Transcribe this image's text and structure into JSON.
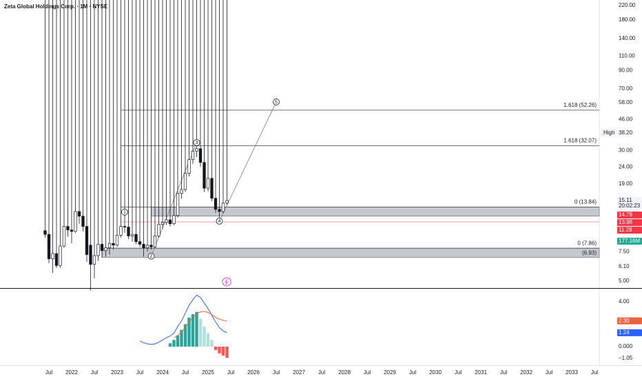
{
  "chart_data": [
    {
      "type": "candlestick",
      "log": true,
      "title": "Zeta Global Holdings Corp. · 1M · NYSE",
      "x": [
        "2021-06",
        "2021-07",
        "2021-08",
        "2021-09",
        "2021-10",
        "2021-11",
        "2021-12",
        "2022-01",
        "2022-02",
        "2022-03",
        "2022-04",
        "2022-05",
        "2022-06",
        "2022-07",
        "2022-08",
        "2022-09",
        "2022-10",
        "2022-11",
        "2022-12",
        "2023-01",
        "2023-02",
        "2023-03",
        "2023-04",
        "2023-05",
        "2023-06",
        "2023-07",
        "2023-08",
        "2023-09",
        "2023-10",
        "2023-11",
        "2023-12",
        "2024-01",
        "2024-02",
        "2024-03",
        "2024-04",
        "2024-05",
        "2024-06",
        "2024-07",
        "2024-08",
        "2024-09",
        "2024-10",
        "2024-11",
        "2024-12",
        "2025-01",
        "2025-02",
        "2025-03",
        "2025-04",
        "2025-05",
        "2025-06"
      ],
      "open": [
        10,
        9.5,
        6.8,
        7.3,
        6.2,
        8.1,
        10.6,
        10.1,
        9.9,
        13.0,
        12.2,
        10.6,
        8.2,
        6.3,
        7.1,
        8.3,
        7.6,
        7.9,
        8.4,
        8.2,
        9.4,
        10.6,
        10.5,
        9.3,
        9.5,
        8.6,
        8.3,
        7.9,
        8.2,
        8.0,
        9.3,
        10.9,
        11.2,
        11.6,
        11.0,
        12.3,
        16.7,
        17.6,
        22.0,
        26.5,
        29.8,
        30.8,
        25.5,
        17.9,
        20.5,
        15.6,
        13.4,
        13.0,
        14.6
      ],
      "high": {
        "label": "High",
        "value": 38.2,
        "value_label": "38.20"
      },
      "low": [
        9.1,
        6.4,
        5.6,
        6.0,
        6.0,
        7.9,
        9.2,
        8.4,
        9.7,
        11.0,
        9.9,
        6.5,
        4.4,
        5.2,
        6.6,
        6.9,
        7.0,
        7.2,
        7.7,
        8.0,
        9.1,
        9.7,
        8.9,
        8.6,
        8.3,
        8.0,
        7.0,
        7.5,
        7.7,
        7.9,
        9.1,
        10.2,
        10.8,
        10.6,
        10.8,
        12.0,
        15.5,
        17.0,
        21.0,
        25.0,
        27.5,
        24.0,
        17.0,
        17.2,
        15.0,
        12.8,
        11.8,
        12.7,
        14.2
      ],
      "close": [
        9.5,
        6.8,
        7.3,
        6.2,
        8.1,
        10.6,
        10.1,
        9.9,
        13.0,
        12.2,
        10.6,
        7.2,
        6.3,
        7.1,
        8.3,
        7.6,
        7.9,
        8.4,
        8.2,
        9.4,
        10.6,
        10.5,
        9.3,
        9.5,
        8.6,
        8.3,
        7.9,
        8.2,
        8.0,
        9.3,
        10.9,
        11.2,
        11.6,
        11.0,
        12.3,
        16.7,
        17.6,
        22.0,
        26.5,
        29.8,
        30.8,
        25.5,
        17.9,
        20.5,
        15.6,
        13.4,
        13.0,
        14.6,
        15.11
      ],
      "colors": {
        "up": "#ffffff",
        "down": "#131722"
      },
      "ylim": [
        4.55,
        237
      ],
      "yticks": [
        {
          "value": 220,
          "label": "220.00"
        },
        {
          "value": 180,
          "label": "180.00"
        },
        {
          "value": 140,
          "label": "140.00"
        },
        {
          "value": 110,
          "label": "110.00"
        },
        {
          "value": 90,
          "label": "90.00"
        },
        {
          "value": 70,
          "label": "70.00"
        },
        {
          "value": 58,
          "label": "58.00"
        },
        {
          "value": 46,
          "label": "46.00"
        },
        {
          "value": 30,
          "label": "30.00"
        },
        {
          "value": 24,
          "label": "24.00"
        },
        {
          "value": 19,
          "label": "19.00"
        },
        {
          "value": 7.5,
          "label": "7.50"
        },
        {
          "value": 6.1,
          "label": "6.10"
        },
        {
          "value": 5,
          "label": "5.00"
        }
      ],
      "xticks": [
        {
          "value": "2021-07",
          "label": "Jul"
        },
        {
          "value": "2022-01",
          "label": "2022"
        },
        {
          "value": "2022-07",
          "label": "Jul"
        },
        {
          "value": "2023-01",
          "label": "2023"
        },
        {
          "value": "2023-07",
          "label": "Jul"
        },
        {
          "value": "2024-01",
          "label": "2024"
        },
        {
          "value": "2024-07",
          "label": "Jul"
        },
        {
          "value": "2025-01",
          "label": "2025"
        },
        {
          "value": "2025-07",
          "label": "Jul"
        },
        {
          "value": "2026-01",
          "label": "2026"
        },
        {
          "value": "2026-07",
          "label": "Jul"
        },
        {
          "value": "2027-01",
          "label": "2027"
        },
        {
          "value": "2027-07",
          "label": "Jul"
        },
        {
          "value": "2028-01",
          "label": "2028"
        },
        {
          "value": "2028-07",
          "label": "Jul"
        },
        {
          "value": "2029-01",
          "label": "2029"
        },
        {
          "value": "2029-07",
          "label": "Jul"
        },
        {
          "value": "2030-01",
          "label": "2030"
        },
        {
          "value": "2030-07",
          "label": "Jul"
        },
        {
          "value": "2031-01",
          "label": "2031"
        },
        {
          "value": "2031-07",
          "label": "Jul"
        },
        {
          "value": "2032-01",
          "label": "2032"
        },
        {
          "value": "2032-07",
          "label": "Jul"
        },
        {
          "value": "2033-01",
          "label": "2033"
        },
        {
          "value": "2033-07",
          "label": "Jul"
        }
      ],
      "levels": [
        {
          "value": 52.26,
          "label": "1.618 (52.26)",
          "from": "2023-02"
        },
        {
          "value": 32.07,
          "label": "1.618 (32.07)",
          "from": "2023-02"
        },
        {
          "value": 13.84,
          "label": "0 (13.84)",
          "from": "2023-02"
        },
        {
          "value": 7.86,
          "label": "0 (7.86)",
          "from": "2022-09"
        }
      ],
      "zones": [
        {
          "top": 13.84,
          "bottom": 12.2,
          "from": "2023-10"
        },
        {
          "top": 7.86,
          "bottom": 6.93,
          "label": "(6.93)",
          "from": "2022-09"
        }
      ],
      "waves": [
        {
          "label": "1",
          "x": "2023-03",
          "value": 12.9
        },
        {
          "label": "2",
          "x": "2023-10",
          "value": 7.05
        },
        {
          "label": "3",
          "x": "2024-10",
          "value": 33.5
        },
        {
          "label": "4",
          "x": "2025-04",
          "value": 11.4
        },
        {
          "label": "5",
          "x": "2026-07",
          "value": 58.5
        }
      ],
      "badges": [
        {
          "value": 15.11,
          "label": "15.11",
          "countdown": "20:02:23",
          "color": "#f0f3fa"
        },
        {
          "value": 14.79,
          "label": "14.79",
          "color": "#f23645"
        },
        {
          "value": 13.98,
          "label": "13.98",
          "color": "#f23645"
        },
        {
          "value": 11.28,
          "label": "11.28",
          "color": "#f23645",
          "line": true
        },
        {
          "label": "177.16M",
          "color": "#22ab94"
        }
      ]
    },
    {
      "type": "line",
      "x": [
        "2023-07",
        "2023-08",
        "2023-09",
        "2023-10",
        "2023-11",
        "2023-12",
        "2024-01",
        "2024-02",
        "2024-03",
        "2024-04",
        "2024-05",
        "2024-06",
        "2024-07",
        "2024-08",
        "2024-09",
        "2024-10",
        "2024-11",
        "2024-12",
        "2025-01",
        "2025-02",
        "2025-03",
        "2025-04",
        "2025-05",
        "2025-06"
      ],
      "series": [
        {
          "color": "#2962ff",
          "values": [
            0.5,
            0.35,
            0.25,
            0.2,
            0.25,
            0.4,
            0.6,
            0.8,
            0.95,
            1.2,
            1.8,
            2.3,
            3.0,
            3.7,
            4.2,
            4.6,
            4.4,
            3.9,
            3.4,
            2.8,
            2.2,
            1.7,
            1.4,
            1.24
          ]
        },
        {
          "color": "#e8643c",
          "values": [
            null,
            null,
            null,
            null,
            null,
            null,
            null,
            null,
            null,
            0.8,
            1.0,
            1.3,
            1.7,
            2.2,
            2.6,
            2.95,
            3.1,
            3.15,
            3.05,
            2.85,
            2.6,
            2.45,
            2.35,
            2.3
          ]
        }
      ],
      "histogram": {
        "values": [
          null,
          null,
          null,
          null,
          null,
          null,
          null,
          null,
          0.3,
          0.6,
          1.0,
          1.5,
          2.0,
          2.6,
          2.9,
          3.1,
          2.5,
          1.8,
          1.2,
          0.6,
          -0.3,
          -0.6,
          -0.8,
          -1.0
        ],
        "colors": {
          "up_rising": "#26a69a",
          "up_falling": "#b2dfdb",
          "down_falling": "#ff5252",
          "down_rising": "#ffcdd2"
        }
      },
      "ylim": [
        -1.66,
        5.11
      ],
      "yticks": [
        {
          "value": 4,
          "label": "4.00"
        },
        {
          "value": 0,
          "label": "0.000"
        },
        {
          "value": -1.05,
          "label": "−1.05"
        }
      ],
      "badges": [
        {
          "value": 2.3,
          "label": "2.30",
          "color": "#e8643c"
        },
        {
          "value": 1.24,
          "label": "1.24",
          "color": "#2962ff"
        }
      ]
    }
  ]
}
